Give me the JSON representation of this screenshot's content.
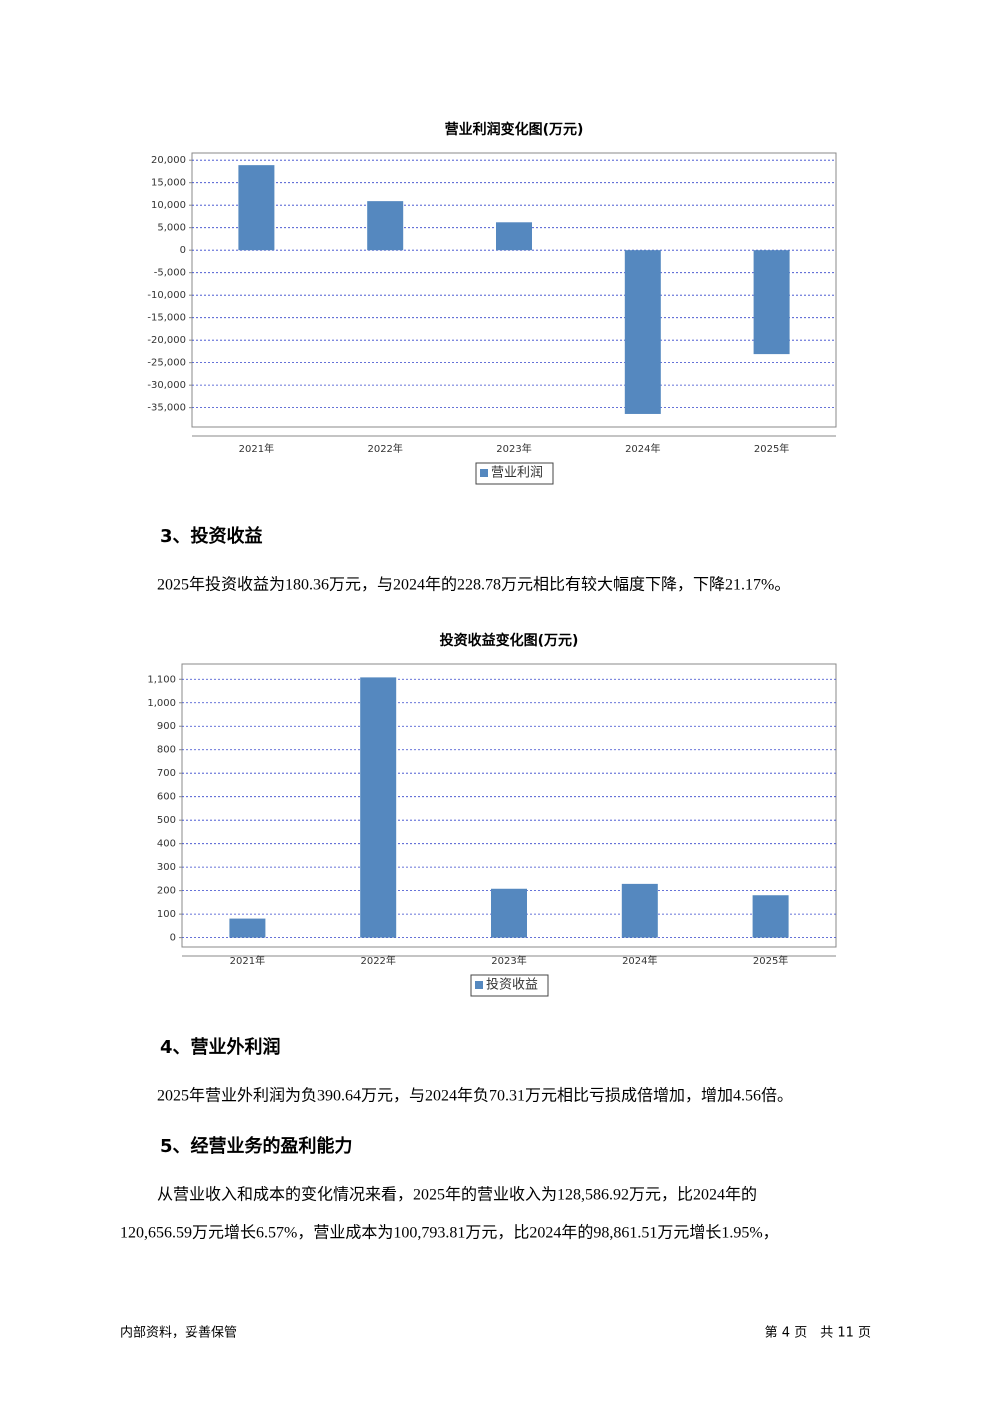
{
  "chart_data": [
    {
      "type": "bar",
      "title": "营业利润变化图(万元)",
      "categories": [
        "2021年",
        "2022年",
        "2023年",
        "2024年",
        "2025年"
      ],
      "series": [
        {
          "name": "营业利润",
          "color": "#5588bf",
          "values": [
            18900,
            10900,
            6200,
            -36400,
            -23100
          ]
        }
      ],
      "ylim": [
        -39300,
        21600
      ],
      "yticks": [
        {
          "value": 20000,
          "label": "20,000"
        },
        {
          "value": 15000,
          "label": "15,000"
        },
        {
          "value": 10000,
          "label": "10,000"
        },
        {
          "value": 5000,
          "label": "5,000"
        },
        0,
        {
          "value": -5000,
          "label": "-5,000"
        },
        {
          "value": -10000,
          "label": "-10,000"
        },
        {
          "value": -15000,
          "label": "-15,000"
        },
        {
          "value": -20000,
          "label": "-20,000"
        },
        {
          "value": -25000,
          "label": "-25,000"
        },
        {
          "value": -30000,
          "label": "-30,000"
        },
        {
          "value": -35000,
          "label": "-35,000"
        }
      ],
      "grid": true
    },
    {
      "type": "bar",
      "title": "投资收益变化图(万元)",
      "categories": [
        "2021年",
        "2022年",
        "2023年",
        "2024年",
        "2025年"
      ],
      "series": [
        {
          "name": "投资收益",
          "color": "#5588bf",
          "values": [
            81,
            1108,
            208,
            228.78,
            180.36
          ]
        }
      ],
      "ylim": [
        -40,
        1165
      ],
      "yticks": [
        {
          "value": 1100,
          "label": "1,100"
        },
        {
          "value": 1000,
          "label": "1,000"
        },
        900,
        800,
        700,
        600,
        500,
        400,
        300,
        200,
        100,
        0
      ],
      "grid": true
    }
  ],
  "sections": [
    {
      "heading": "3、投资收益",
      "paragraphs": [
        "2025年投资收益为180.36万元，与2024年的228.78万元相比有较大幅度下降，下降21.17%。"
      ]
    },
    {
      "heading": "4、营业外利润",
      "paragraphs": [
        "2025年营业外利润为负390.64万元，与2024年负70.31万元相比亏损成倍增加，增加4.56倍。"
      ]
    },
    {
      "heading": "5、经营业务的盈利能力",
      "paragraphs": [
        "从营业收入和成本的变化情况来看，2025年的营业收入为128,586.92万元，比2024年的",
        "120,656.59万元增长6.57%，营业成本为100,793.81万元，比2024年的98,861.51万元增长1.95%，"
      ]
    }
  ],
  "footer": {
    "left": "内部资料，妥善保管",
    "right": "第 4 页　共 11 页"
  }
}
